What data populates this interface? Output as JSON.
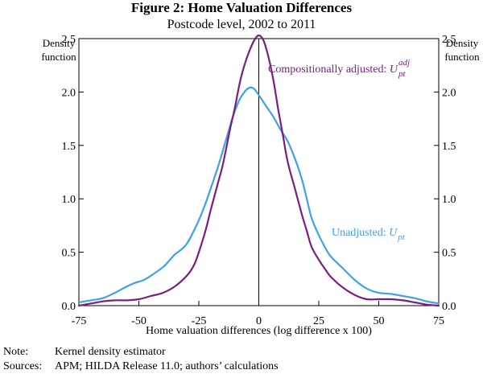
{
  "figure": {
    "title": "Figure 2: Home Valuation Differences",
    "subtitle": "Postcode level, 2002 to 2011"
  },
  "notes": [
    {
      "label": "Note:",
      "text": "Kernel density estimator"
    },
    {
      "label": "Sources:",
      "text": "APM; HILDA Release 11.0; authors’ calculations"
    }
  ],
  "colors": {
    "adjusted": "#7b1d82",
    "unadjusted": "#3fa0ee",
    "axis": "#000000"
  },
  "chart_data": {
    "type": "line",
    "xlabel": "Home valuation differences (log difference x 100)",
    "ylabel_left": [
      "Density",
      "function"
    ],
    "ylabel_right": [
      "Density",
      "function"
    ],
    "xlim": [
      -75,
      75
    ],
    "ylim": [
      0,
      2.5
    ],
    "x_ticks": [
      -75,
      -50,
      -25,
      0,
      25,
      50,
      75
    ],
    "y_ticks": [
      0.0,
      0.5,
      1.0,
      1.5,
      2.0,
      2.5
    ],
    "vertical_line_at": 0,
    "series": [
      {
        "name": "Compositionally adjusted",
        "annotation": {
          "text": "Compositionally adjusted: ",
          "sym": "U",
          "sup": "adj",
          "sub": "pt"
        },
        "points": [
          [
            -75,
            0.0
          ],
          [
            -70,
            0.02
          ],
          [
            -65,
            0.04
          ],
          [
            -60,
            0.05
          ],
          [
            -55,
            0.05
          ],
          [
            -50,
            0.06
          ],
          [
            -45,
            0.09
          ],
          [
            -40,
            0.12
          ],
          [
            -35,
            0.18
          ],
          [
            -30,
            0.28
          ],
          [
            -27,
            0.38
          ],
          [
            -25,
            0.5
          ],
          [
            -22,
            0.72
          ],
          [
            -20,
            0.9
          ],
          [
            -17,
            1.15
          ],
          [
            -15,
            1.32
          ],
          [
            -12,
            1.65
          ],
          [
            -10,
            1.85
          ],
          [
            -8,
            2.08
          ],
          [
            -6,
            2.25
          ],
          [
            -4,
            2.38
          ],
          [
            -2,
            2.48
          ],
          [
            0,
            2.53
          ],
          [
            2,
            2.48
          ],
          [
            4,
            2.33
          ],
          [
            6,
            2.12
          ],
          [
            8,
            1.85
          ],
          [
            10,
            1.6
          ],
          [
            12,
            1.35
          ],
          [
            15,
            1.1
          ],
          [
            18,
            0.85
          ],
          [
            20,
            0.7
          ],
          [
            22,
            0.55
          ],
          [
            25,
            0.43
          ],
          [
            28,
            0.33
          ],
          [
            30,
            0.27
          ],
          [
            35,
            0.17
          ],
          [
            40,
            0.1
          ],
          [
            45,
            0.06
          ],
          [
            50,
            0.06
          ],
          [
            55,
            0.06
          ],
          [
            60,
            0.05
          ],
          [
            65,
            0.03
          ],
          [
            70,
            0.01
          ],
          [
            75,
            0.0
          ]
        ]
      },
      {
        "name": "Unadjusted",
        "annotation": {
          "text": "Unadjusted: ",
          "sym": "U",
          "sup": "",
          "sub": "pt"
        },
        "points": [
          [
            -75,
            0.03
          ],
          [
            -70,
            0.05
          ],
          [
            -65,
            0.07
          ],
          [
            -60,
            0.12
          ],
          [
            -55,
            0.18
          ],
          [
            -52,
            0.21
          ],
          [
            -48,
            0.24
          ],
          [
            -45,
            0.28
          ],
          [
            -40,
            0.36
          ],
          [
            -37,
            0.43
          ],
          [
            -35,
            0.48
          ],
          [
            -32,
            0.53
          ],
          [
            -30,
            0.58
          ],
          [
            -28,
            0.66
          ],
          [
            -25,
            0.8
          ],
          [
            -22,
            0.97
          ],
          [
            -20,
            1.1
          ],
          [
            -17,
            1.3
          ],
          [
            -15,
            1.45
          ],
          [
            -12,
            1.68
          ],
          [
            -10,
            1.82
          ],
          [
            -8,
            1.93
          ],
          [
            -6,
            2.0
          ],
          [
            -4,
            2.04
          ],
          [
            -2,
            2.03
          ],
          [
            0,
            1.97
          ],
          [
            3,
            1.87
          ],
          [
            6,
            1.77
          ],
          [
            9,
            1.65
          ],
          [
            12,
            1.54
          ],
          [
            15,
            1.38
          ],
          [
            18,
            1.18
          ],
          [
            20,
            1.0
          ],
          [
            22,
            0.82
          ],
          [
            25,
            0.66
          ],
          [
            28,
            0.53
          ],
          [
            30,
            0.46
          ],
          [
            35,
            0.35
          ],
          [
            40,
            0.24
          ],
          [
            45,
            0.16
          ],
          [
            50,
            0.12
          ],
          [
            55,
            0.11
          ],
          [
            60,
            0.09
          ],
          [
            65,
            0.07
          ],
          [
            70,
            0.04
          ],
          [
            75,
            0.02
          ]
        ]
      }
    ]
  }
}
